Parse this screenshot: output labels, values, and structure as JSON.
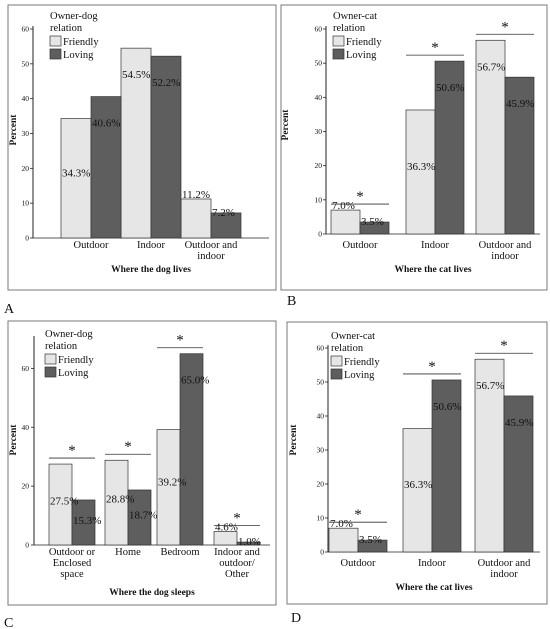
{
  "colors": {
    "friendly": "#e6e6e6",
    "loving": "#5e5e5e",
    "frame": "#7a7a7a",
    "axis": "#222222"
  },
  "chart_data": [
    {
      "panel_label": "A",
      "type": "bar",
      "legend_title": [
        "Owner-dog",
        "relation"
      ],
      "legend_placement": "top-left",
      "xlabel": "Where the dog lives",
      "ylabel": "Percent",
      "ylim": [
        0,
        60
      ],
      "yticks": [
        "0",
        "10",
        "20",
        "30",
        "40",
        "50",
        "60"
      ],
      "categories": [
        [
          "Outdoor"
        ],
        [
          "Indoor"
        ],
        [
          "Outdoor and",
          "indoor"
        ]
      ],
      "series": [
        {
          "name": "Friendly",
          "values": [
            34.3,
            54.5,
            11.2
          ],
          "labels": [
            "34.3%",
            "54.5%",
            "11.2%"
          ]
        },
        {
          "name": "Loving",
          "values": [
            40.6,
            52.2,
            7.2
          ],
          "labels": [
            "40.6%",
            "52.2%",
            "7.2%"
          ]
        }
      ],
      "significance": [
        false,
        false,
        false
      ],
      "marker": "*",
      "grid": false
    },
    {
      "panel_label": "B",
      "type": "bar",
      "legend_title": [
        "Owner-cat",
        "relation"
      ],
      "legend_placement": "top-left",
      "xlabel": "Where the cat lives",
      "ylabel": "Percent",
      "ylim": [
        0,
        60
      ],
      "yticks": [
        "0",
        "10",
        "20",
        "30",
        "40",
        "50",
        "60"
      ],
      "categories": [
        [
          "Outdoor"
        ],
        [
          "Indoor"
        ],
        [
          "Outdoor and",
          "indoor"
        ]
      ],
      "series": [
        {
          "name": "Friendly",
          "values": [
            7.0,
            36.3,
            56.7
          ],
          "labels": [
            "7.0%",
            "36.3%",
            "56.7%"
          ]
        },
        {
          "name": "Loving",
          "values": [
            3.5,
            50.6,
            45.9
          ],
          "labels": [
            "3.5%",
            "50.6%",
            "45.9%"
          ]
        }
      ],
      "significance": [
        true,
        true,
        true
      ],
      "marker": "*",
      "grid": false
    },
    {
      "panel_label": "C",
      "type": "bar",
      "legend_title": [
        "Owner-dog",
        "relation"
      ],
      "legend_placement": "top-left",
      "xlabel": "Where the dog sleeps",
      "ylabel": "Percent",
      "ylim": [
        0,
        70
      ],
      "yticks": [
        "0",
        "20",
        "40",
        "60"
      ],
      "ytick_values": [
        0,
        20,
        40,
        60
      ],
      "categories": [
        [
          "Outdoor or",
          "Enclosed",
          "space"
        ],
        [
          "Home"
        ],
        [
          "Bedroom"
        ],
        [
          "Indoor and",
          "outdoor/",
          "Other"
        ]
      ],
      "series": [
        {
          "name": "Friendly",
          "values": [
            27.5,
            28.8,
            39.2,
            4.6
          ],
          "labels": [
            "27.5%",
            "28.8%",
            "39.2%",
            "4.6%"
          ]
        },
        {
          "name": "Loving",
          "values": [
            15.3,
            18.7,
            65.0,
            1.0
          ],
          "labels": [
            "15.3%",
            "18.7%",
            "65.0%",
            "1.0%"
          ]
        }
      ],
      "significance": [
        true,
        true,
        true,
        true
      ],
      "marker": "*",
      "grid": false
    },
    {
      "panel_label": "D",
      "type": "bar",
      "legend_title": [
        "Owner-cat",
        "relation"
      ],
      "legend_placement": "top-left",
      "xlabel": "Where the cat lives",
      "ylabel": "Percent",
      "ylim": [
        0,
        60
      ],
      "yticks": [
        "0",
        "10",
        "20",
        "30",
        "40",
        "50",
        "60"
      ],
      "categories": [
        [
          "Outdoor"
        ],
        [
          "Indoor"
        ],
        [
          "Outdoor and",
          "indoor"
        ]
      ],
      "series": [
        {
          "name": "Friendly",
          "values": [
            7.0,
            36.3,
            56.7
          ],
          "labels": [
            "7.0%",
            "36.3%",
            "56.7%"
          ]
        },
        {
          "name": "Loving",
          "values": [
            3.5,
            50.6,
            45.9
          ],
          "labels": [
            "3.5%",
            "50.6%",
            "45.9%"
          ]
        }
      ],
      "significance": [
        true,
        true,
        true
      ],
      "marker": "*",
      "grid": false
    }
  ]
}
